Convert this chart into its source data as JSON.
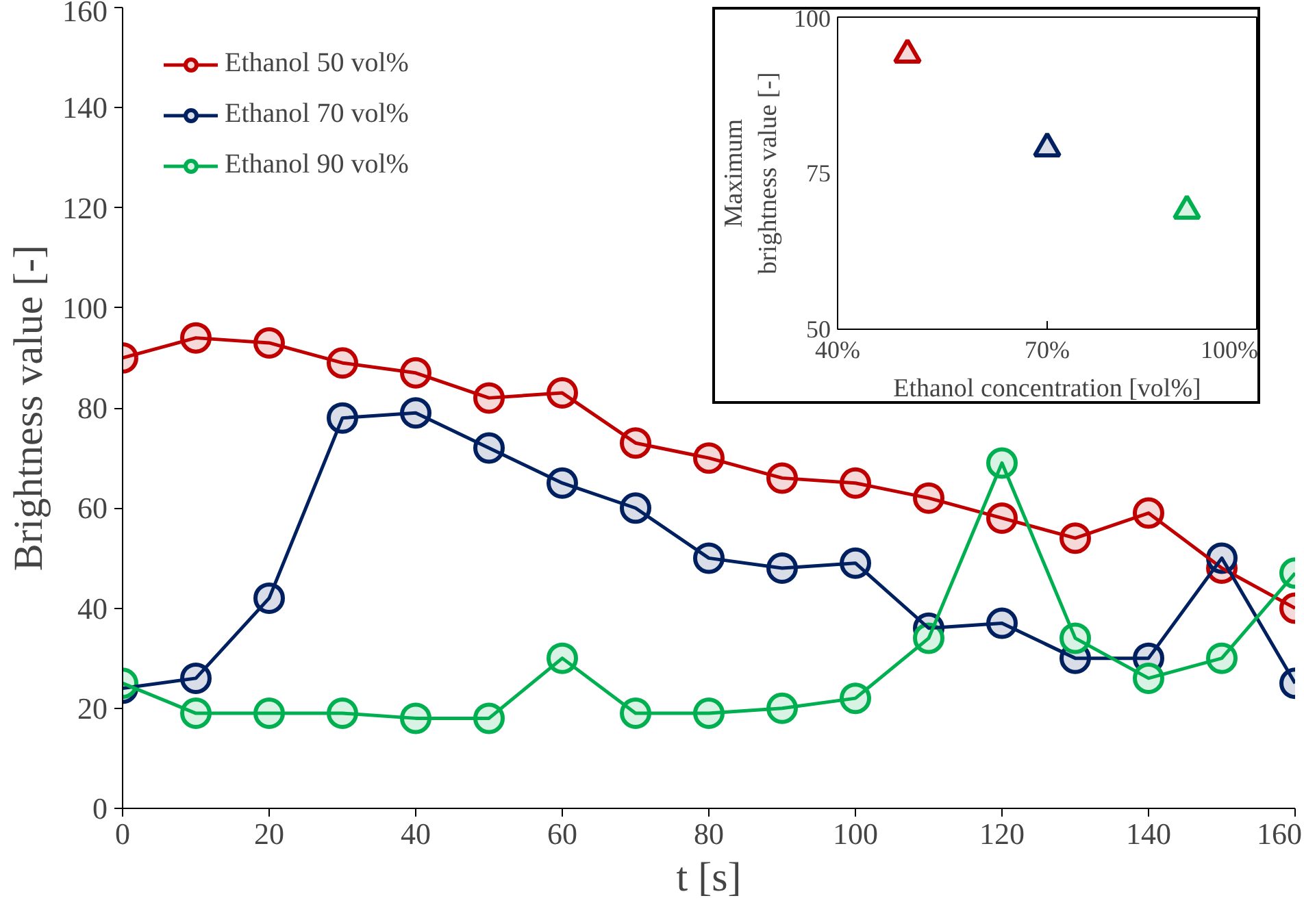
{
  "chart_data": [
    {
      "type": "line",
      "xlabel": "t [s]",
      "ylabel": "Brightness value [-]",
      "x": [
        0,
        10,
        20,
        30,
        40,
        50,
        60,
        70,
        80,
        90,
        100,
        110,
        120,
        130,
        140,
        150,
        160
      ],
      "series": [
        {
          "name": "Ethanol 50 vol%",
          "color": "#c00000",
          "values": [
            90,
            94,
            93,
            89,
            87,
            82,
            83,
            73,
            70,
            66,
            65,
            62,
            58,
            54,
            59,
            48,
            40
          ]
        },
        {
          "name": "Ethanol 70 vol%",
          "color": "#002060",
          "values": [
            24,
            26,
            42,
            78,
            79,
            72,
            65,
            60,
            50,
            48,
            49,
            36,
            37,
            30,
            30,
            50,
            25
          ]
        },
        {
          "name": "Ethanol 90 vol%",
          "color": "#00b050",
          "values": [
            25,
            19,
            19,
            19,
            18,
            18,
            30,
            19,
            19,
            20,
            22,
            34,
            69,
            34,
            26,
            30,
            47
          ]
        }
      ],
      "xlim": [
        0,
        160
      ],
      "xticks": [
        0,
        20,
        40,
        60,
        80,
        100,
        120,
        140,
        160
      ],
      "ylim": [
        0,
        160
      ],
      "yticks": [
        0,
        20,
        40,
        60,
        80,
        100,
        120,
        140,
        160
      ],
      "marker": "circle",
      "line_style": "solid",
      "grid": false,
      "legend": "top left"
    },
    {
      "type": "scatter",
      "xlabel": "Ethanol concentration [vol%]",
      "ylabel": "Maximum\nbrightness value [-]",
      "x": [
        50,
        70,
        90
      ],
      "values": [
        94,
        79,
        69
      ],
      "colors": [
        "#c00000",
        "#002060",
        "#00b050"
      ],
      "xlim": [
        40,
        100
      ],
      "xticks": [
        {
          "value": 40,
          "label": "40%"
        },
        {
          "value": 70,
          "label": "70%"
        },
        {
          "value": 100,
          "label": "100%"
        }
      ],
      "ylim": [
        50,
        100
      ],
      "yticks": [
        50,
        75,
        100
      ],
      "marker": "triangle",
      "grid": false
    }
  ]
}
